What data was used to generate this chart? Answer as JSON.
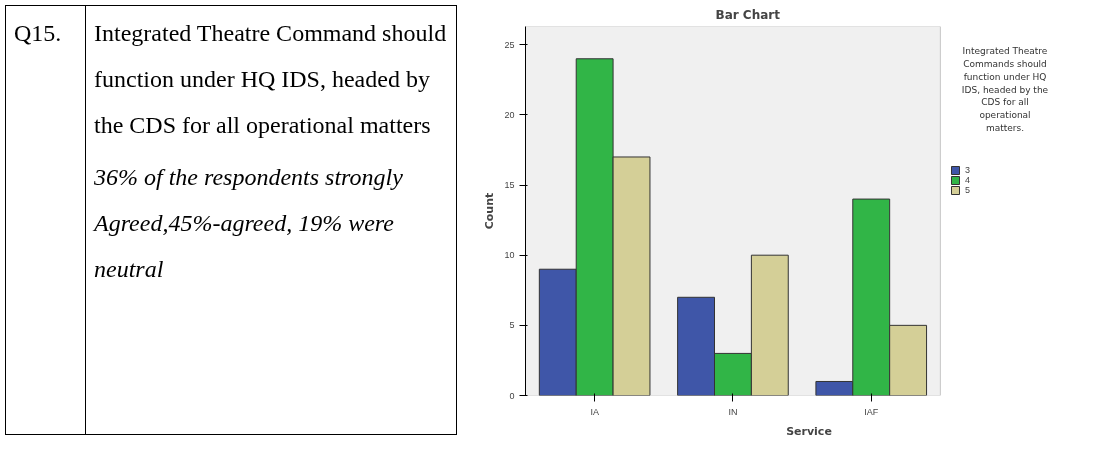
{
  "chart_data": {
    "type": "bar",
    "title": "Bar Chart",
    "xlabel": "Service",
    "ylabel": "Count",
    "legend_title": "Integrated Theatre Commands should function under HQ IDS, headed by the CDS for all operational matters.",
    "categories": [
      "IA",
      "IN",
      "IAF"
    ],
    "series": [
      {
        "name": "3",
        "color": "#3f56a8",
        "values": [
          9,
          7,
          1
        ]
      },
      {
        "name": "4",
        "color": "#31b547",
        "values": [
          24,
          3,
          14
        ]
      },
      {
        "name": "5",
        "color": "#d4cf97",
        "values": [
          17,
          10,
          5
        ]
      }
    ],
    "ylim": [
      0,
      26.3
    ],
    "yticks": [
      0,
      5,
      10,
      15,
      20,
      25
    ],
    "legend": "right",
    "annotations": [
      "Q15.",
      "Integrated Theatre Command should function under HQ IDS, headed by the CDS for all operational matters",
      "36% of the respondents strongly Agreed,45%-agreed, 19% were neutral"
    ]
  }
}
